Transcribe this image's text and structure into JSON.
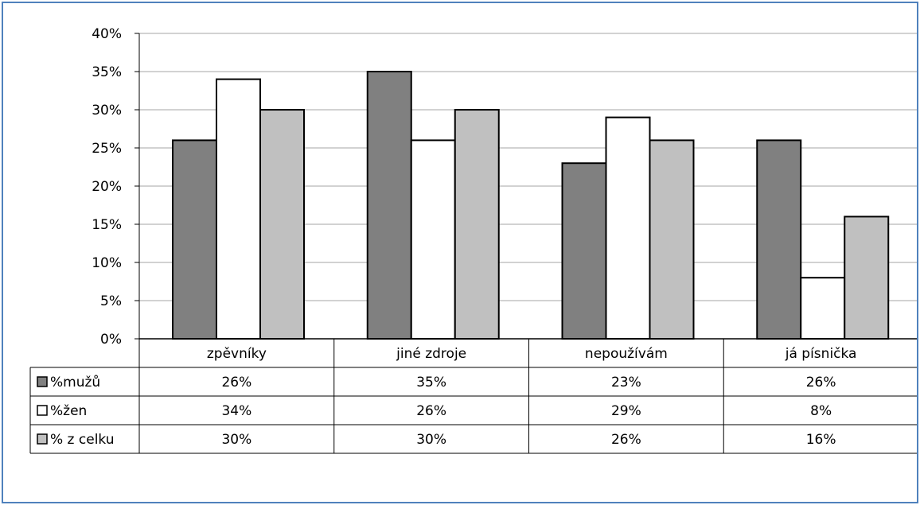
{
  "chart_data": {
    "type": "bar",
    "categories": [
      "zpěvníky",
      "jiné zdroje",
      "nepoužívám",
      "já písnička"
    ],
    "series": [
      {
        "name": "%mužů",
        "values": [
          26,
          35,
          23,
          26
        ],
        "color": "#808080",
        "labels": [
          "26%",
          "35%",
          "23%",
          "26%"
        ]
      },
      {
        "name": "%žen",
        "values": [
          34,
          26,
          29,
          8
        ],
        "color": "#ffffff",
        "labels": [
          "34%",
          "26%",
          "29%",
          "8%"
        ]
      },
      {
        "name": "% z celku",
        "values": [
          30,
          30,
          26,
          16
        ],
        "color": "#c0c0c0",
        "labels": [
          "30%",
          "30%",
          "26%",
          "16%"
        ]
      }
    ],
    "ylim": [
      0,
      40
    ],
    "yticks": [
      0,
      5,
      10,
      15,
      20,
      25,
      30,
      35,
      40
    ],
    "ytick_labels": [
      "0%",
      "5%",
      "10%",
      "15%",
      "20%",
      "25%",
      "30%",
      "35%",
      "40%"
    ],
    "grid": true,
    "legend": "data-table"
  },
  "colors": {
    "frame_border": "#4f81bd",
    "bar_outline": "#000000",
    "gridline": "#a6a6a6"
  }
}
